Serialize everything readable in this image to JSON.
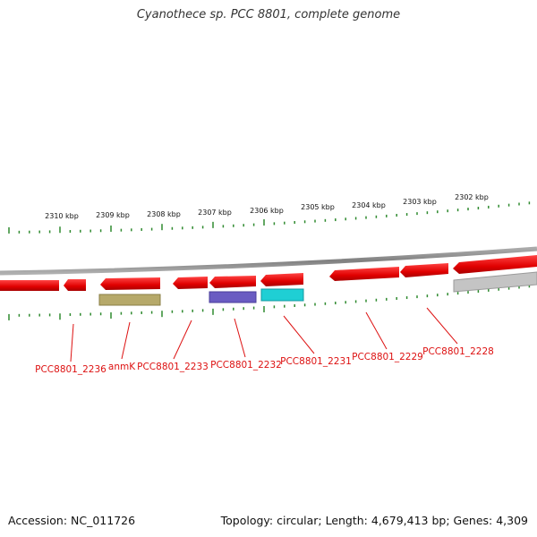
{
  "title": "Cyanothece sp. PCC 8801, complete genome",
  "ruler": {
    "labels": [
      "2310 kbp",
      "2309 kbp",
      "2308 kbp",
      "2307 kbp",
      "2306 kbp",
      "2305 kbp",
      "2304 kbp",
      "2303 kbp",
      "2302 kbp"
    ],
    "tick_color": "#2f8a2f"
  },
  "genes": [
    {
      "label": "PCC8801_2236",
      "color": "#ee1111"
    },
    {
      "label": "anmK",
      "color": "#ee1111"
    },
    {
      "label": "PCC8801_2233",
      "color": "#ee1111"
    },
    {
      "label": "PCC8801_2232",
      "color": "#ee1111"
    },
    {
      "label": "PCC8801_2231",
      "color": "#ee1111"
    },
    {
      "label": "PCC8801_2229",
      "color": "#ee1111"
    },
    {
      "label": "PCC8801_2228",
      "color": "#ee1111"
    }
  ],
  "feature_colors": {
    "gene_forward": "#ee1111",
    "backbone": "#8a8a8a",
    "khaki": "#b6a96a",
    "purple": "#6a5cc2",
    "cyan": "#1fcfd4",
    "grey": "#bdbdbd",
    "label": "#dd1111"
  },
  "footer": {
    "accession": "Accession: NC_011726",
    "summary": "Topology: circular; Length: 4,679,413 bp; Genes: 4,309"
  }
}
